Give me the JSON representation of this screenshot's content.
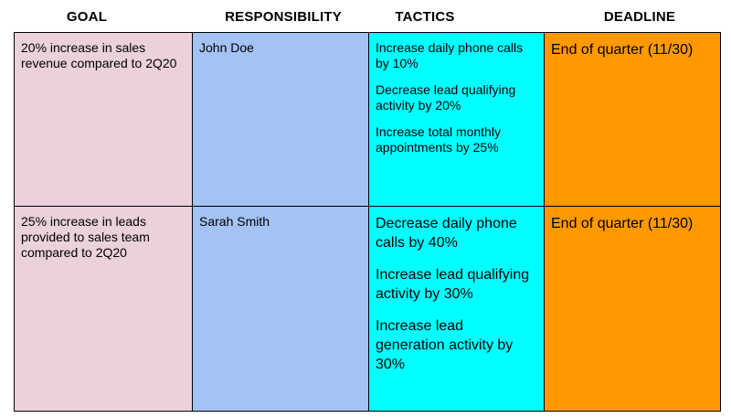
{
  "headers": {
    "goal": "GOAL",
    "responsibility": "RESPONSIBILITY",
    "tactics": "TACTICS",
    "deadline": "DEADLINE"
  },
  "rows": [
    {
      "goal": "20% increase in sales revenue compared to 2Q20",
      "responsibility": "John Doe",
      "tactics": [
        "Increase daily phone calls by 10%",
        "Decrease lead qualifying activity by 20%",
        "Increase total monthly appointments by 25%"
      ],
      "deadline": "End of quarter (11/30)"
    },
    {
      "goal": "25% increase in leads provided to sales team compared to 2Q20",
      "responsibility": "Sarah Smith",
      "tactics": [
        "Decrease daily phone calls by 40%",
        "Increase lead qualifying activity by 30%",
        "Increase lead generation activity by 30%"
      ],
      "deadline": "End of quarter (11/30)"
    }
  ],
  "colors": {
    "goal": "#ead1dc",
    "responsibility": "#a4c2f4",
    "tactics": "#00ffff",
    "deadline": "#ff9900"
  }
}
